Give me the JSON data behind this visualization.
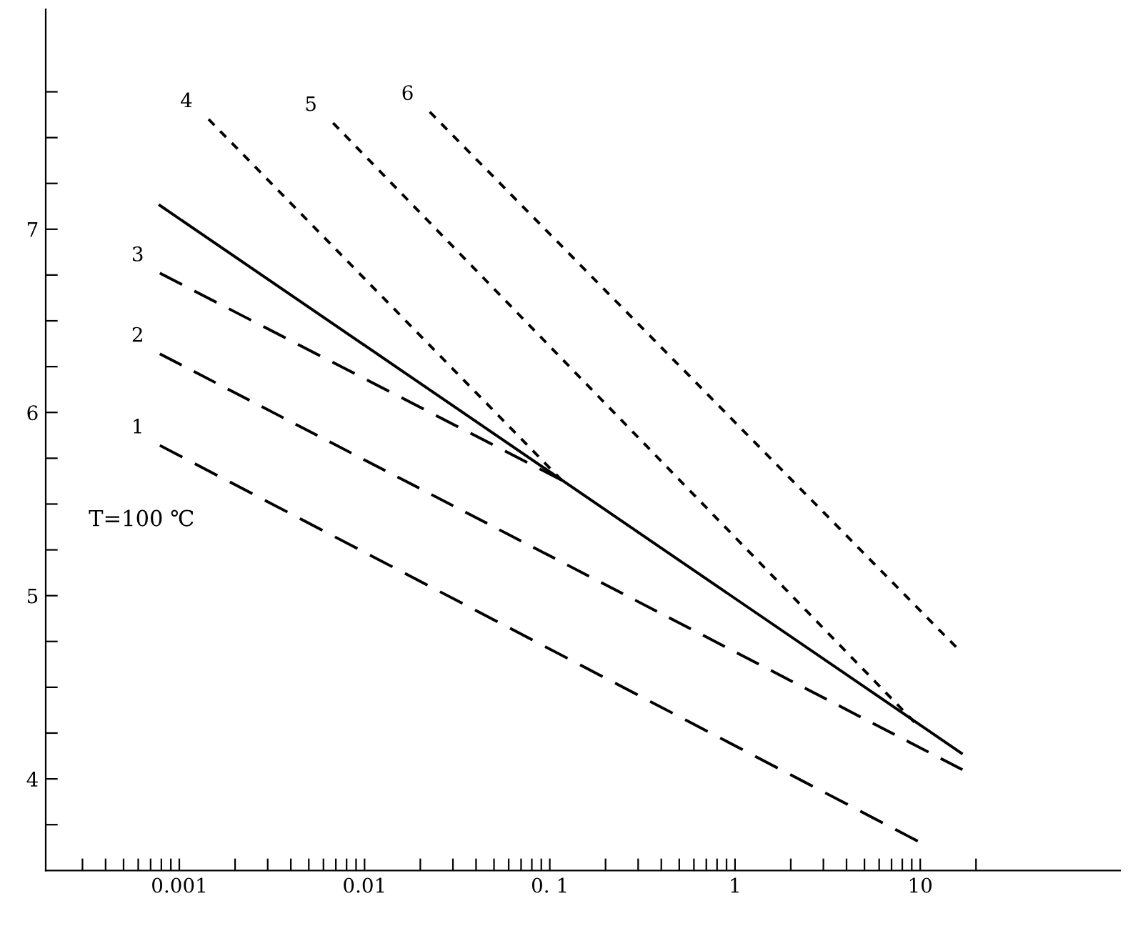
{
  "chart_data": {
    "type": "line",
    "annotations": [
      "T=100 ℃"
    ],
    "xlim": [
      0.00019,
      120
    ],
    "ylim": [
      3.5,
      8.2
    ],
    "log": "x",
    "grid": false,
    "legend": false,
    "marker": "none",
    "xticks": [
      {
        "value": 0.0003,
        "label": null
      },
      {
        "value": 0.0004,
        "label": null
      },
      {
        "value": 0.0005,
        "label": null
      },
      {
        "value": 0.0006,
        "label": null
      },
      {
        "value": 0.0007,
        "label": null
      },
      {
        "value": 0.0008,
        "label": null
      },
      {
        "value": 0.0009,
        "label": null
      },
      {
        "value": 0.001,
        "label": "0.001"
      },
      {
        "value": 0.002,
        "label": null
      },
      {
        "value": 0.003,
        "label": null
      },
      {
        "value": 0.004,
        "label": null
      },
      {
        "value": 0.005,
        "label": null
      },
      {
        "value": 0.006,
        "label": null
      },
      {
        "value": 0.007,
        "label": null
      },
      {
        "value": 0.008,
        "label": null
      },
      {
        "value": 0.009,
        "label": null
      },
      {
        "value": 0.01,
        "label": "0.01"
      },
      {
        "value": 0.02,
        "label": null
      },
      {
        "value": 0.03,
        "label": null
      },
      {
        "value": 0.04,
        "label": null
      },
      {
        "value": 0.05,
        "label": null
      },
      {
        "value": 0.06,
        "label": null
      },
      {
        "value": 0.07,
        "label": null
      },
      {
        "value": 0.08,
        "label": null
      },
      {
        "value": 0.09,
        "label": null
      },
      {
        "value": 0.1,
        "label": "0. 1"
      },
      {
        "value": 0.2,
        "label": null
      },
      {
        "value": 0.3,
        "label": null
      },
      {
        "value": 0.4,
        "label": null
      },
      {
        "value": 0.5,
        "label": null
      },
      {
        "value": 0.6,
        "label": null
      },
      {
        "value": 0.7,
        "label": null
      },
      {
        "value": 0.8,
        "label": null
      },
      {
        "value": 0.9,
        "label": null
      },
      {
        "value": 1,
        "label": "1"
      },
      {
        "value": 2,
        "label": null
      },
      {
        "value": 3,
        "label": null
      },
      {
        "value": 4,
        "label": null
      },
      {
        "value": 5,
        "label": null
      },
      {
        "value": 6,
        "label": null
      },
      {
        "value": 7,
        "label": null
      },
      {
        "value": 8,
        "label": null
      },
      {
        "value": 9,
        "label": null
      },
      {
        "value": 10,
        "label": "10"
      },
      {
        "value": 20,
        "label": null
      }
    ],
    "yticks": [
      {
        "value": 3.75,
        "label": null
      },
      4,
      {
        "value": 4.25,
        "label": null
      },
      {
        "value": 4.5,
        "label": null
      },
      {
        "value": 4.75,
        "label": null
      },
      5,
      {
        "value": 5.25,
        "label": null
      },
      {
        "value": 5.5,
        "label": null
      },
      {
        "value": 5.75,
        "label": null
      },
      6,
      {
        "value": 6.25,
        "label": null
      },
      {
        "value": 6.5,
        "label": null
      },
      {
        "value": 6.75,
        "label": null
      },
      7,
      {
        "value": 7.25,
        "label": null
      },
      {
        "value": 7.5,
        "label": null
      },
      {
        "value": 7.75,
        "label": null
      }
    ],
    "series": [
      {
        "color": "#000000",
        "line_style": "solid",
        "x": [
          0.000785,
          16.7
        ],
        "values": [
          7.13,
          4.14
        ]
      },
      {
        "name": "1",
        "color": "#000000",
        "line_style": "dashed",
        "x": [
          0.000785,
          9.7
        ],
        "values": [
          5.82,
          3.66
        ]
      },
      {
        "name": "2",
        "color": "#000000",
        "line_style": "dashed",
        "x": [
          0.000785,
          16.9
        ],
        "values": [
          6.32,
          4.05
        ]
      },
      {
        "name": "3",
        "color": "#000000",
        "line_style": "dashed",
        "x": [
          0.000785,
          0.116
        ],
        "values": [
          6.76,
          5.63
        ]
      },
      {
        "name": "4",
        "color": "#000000",
        "line_style": "dotted",
        "x": [
          0.00144,
          0.116
        ],
        "values": [
          7.6,
          5.63
        ]
      },
      {
        "name": "5",
        "color": "#000000",
        "line_style": "dotted",
        "x": [
          0.00676,
          9.3
        ],
        "values": [
          7.58,
          4.31
        ]
      },
      {
        "name": "6",
        "color": "#000000",
        "line_style": "dotted",
        "x": [
          0.0225,
          15.6
        ],
        "values": [
          7.64,
          4.72
        ]
      }
    ]
  }
}
